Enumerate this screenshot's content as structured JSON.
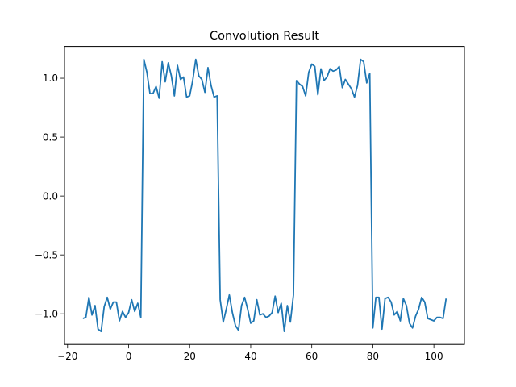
{
  "chart_data": {
    "type": "line",
    "title": "Convolution Result",
    "xlabel": "",
    "ylabel": "",
    "xlim": [
      -21,
      110
    ],
    "ylim": [
      -1.26,
      1.27
    ],
    "x_ticks": [
      -20,
      0,
      20,
      40,
      60,
      80,
      100
    ],
    "y_ticks": [
      -1.0,
      -0.5,
      0.0,
      0.5,
      1.0
    ],
    "x_tick_labels": [
      "−20",
      "0",
      "20",
      "40",
      "60",
      "80",
      "100"
    ],
    "y_tick_labels": [
      "−1.0",
      "−0.5",
      "0.0",
      "0.5",
      "1.0"
    ],
    "grid": false,
    "line_color": "#1f77b4",
    "series": [
      {
        "x": [
          -15,
          -14,
          -13,
          -12,
          -11,
          -10,
          -9,
          -8,
          -7,
          -6,
          -5,
          -4,
          -3,
          -2,
          -1,
          0,
          1,
          2,
          3,
          4,
          5,
          6,
          7,
          8,
          9,
          10,
          11,
          12,
          13,
          14,
          15,
          16,
          17,
          18,
          19,
          20,
          21,
          22,
          23,
          24,
          25,
          26,
          27,
          28,
          29,
          30,
          31,
          32,
          33,
          34,
          35,
          36,
          37,
          38,
          39,
          40,
          41,
          42,
          43,
          44,
          45,
          46,
          47,
          48,
          49,
          50,
          51,
          52,
          53,
          54,
          55,
          56,
          57,
          58,
          59,
          60,
          61,
          62,
          63,
          64,
          65,
          66,
          67,
          68,
          69,
          70,
          71,
          72,
          73,
          74,
          75,
          76,
          77,
          78,
          79,
          80,
          81,
          82,
          83,
          84,
          85,
          86,
          87,
          88,
          89,
          90,
          91,
          92,
          93,
          94,
          95,
          96,
          97,
          98,
          99,
          100,
          101,
          102,
          103,
          104
        ],
        "y": [
          -1.04,
          -1.03,
          -0.86,
          -1.01,
          -0.93,
          -1.13,
          -1.15,
          -0.94,
          -0.86,
          -0.96,
          -0.9,
          -0.9,
          -1.06,
          -0.98,
          -1.03,
          -0.99,
          -0.88,
          -0.98,
          -0.91,
          -1.03,
          1.16,
          1.05,
          0.87,
          0.87,
          0.93,
          0.83,
          1.14,
          0.97,
          1.13,
          1.02,
          0.85,
          1.11,
          0.99,
          1.01,
          0.84,
          0.85,
          0.98,
          1.16,
          1.02,
          0.99,
          0.88,
          1.09,
          0.94,
          0.84,
          0.85,
          -0.88,
          -1.07,
          -0.96,
          -0.84,
          -0.99,
          -1.1,
          -1.14,
          -0.93,
          -0.86,
          -0.96,
          -1.08,
          -1.06,
          -0.88,
          -1.01,
          -1.0,
          -1.03,
          -1.02,
          -0.99,
          -0.85,
          -0.99,
          -0.91,
          -1.15,
          -0.93,
          -1.07,
          -0.84,
          0.98,
          0.95,
          0.93,
          0.85,
          1.05,
          1.12,
          1.1,
          0.86,
          1.08,
          0.98,
          1.01,
          1.08,
          1.06,
          1.07,
          1.1,
          0.92,
          0.99,
          0.95,
          0.91,
          0.84,
          0.94,
          1.16,
          1.14,
          0.96,
          1.04,
          -1.12,
          -0.86,
          -0.86,
          -1.13,
          -0.87,
          -0.86,
          -0.9,
          -1.01,
          -0.98,
          -1.06,
          -0.87,
          -0.93,
          -1.08,
          -1.12,
          -1.02,
          -0.96,
          -0.86,
          -0.9,
          -1.04,
          -1.05,
          -1.06,
          -1.03,
          -1.03,
          -1.04,
          -0.87
        ]
      }
    ]
  }
}
